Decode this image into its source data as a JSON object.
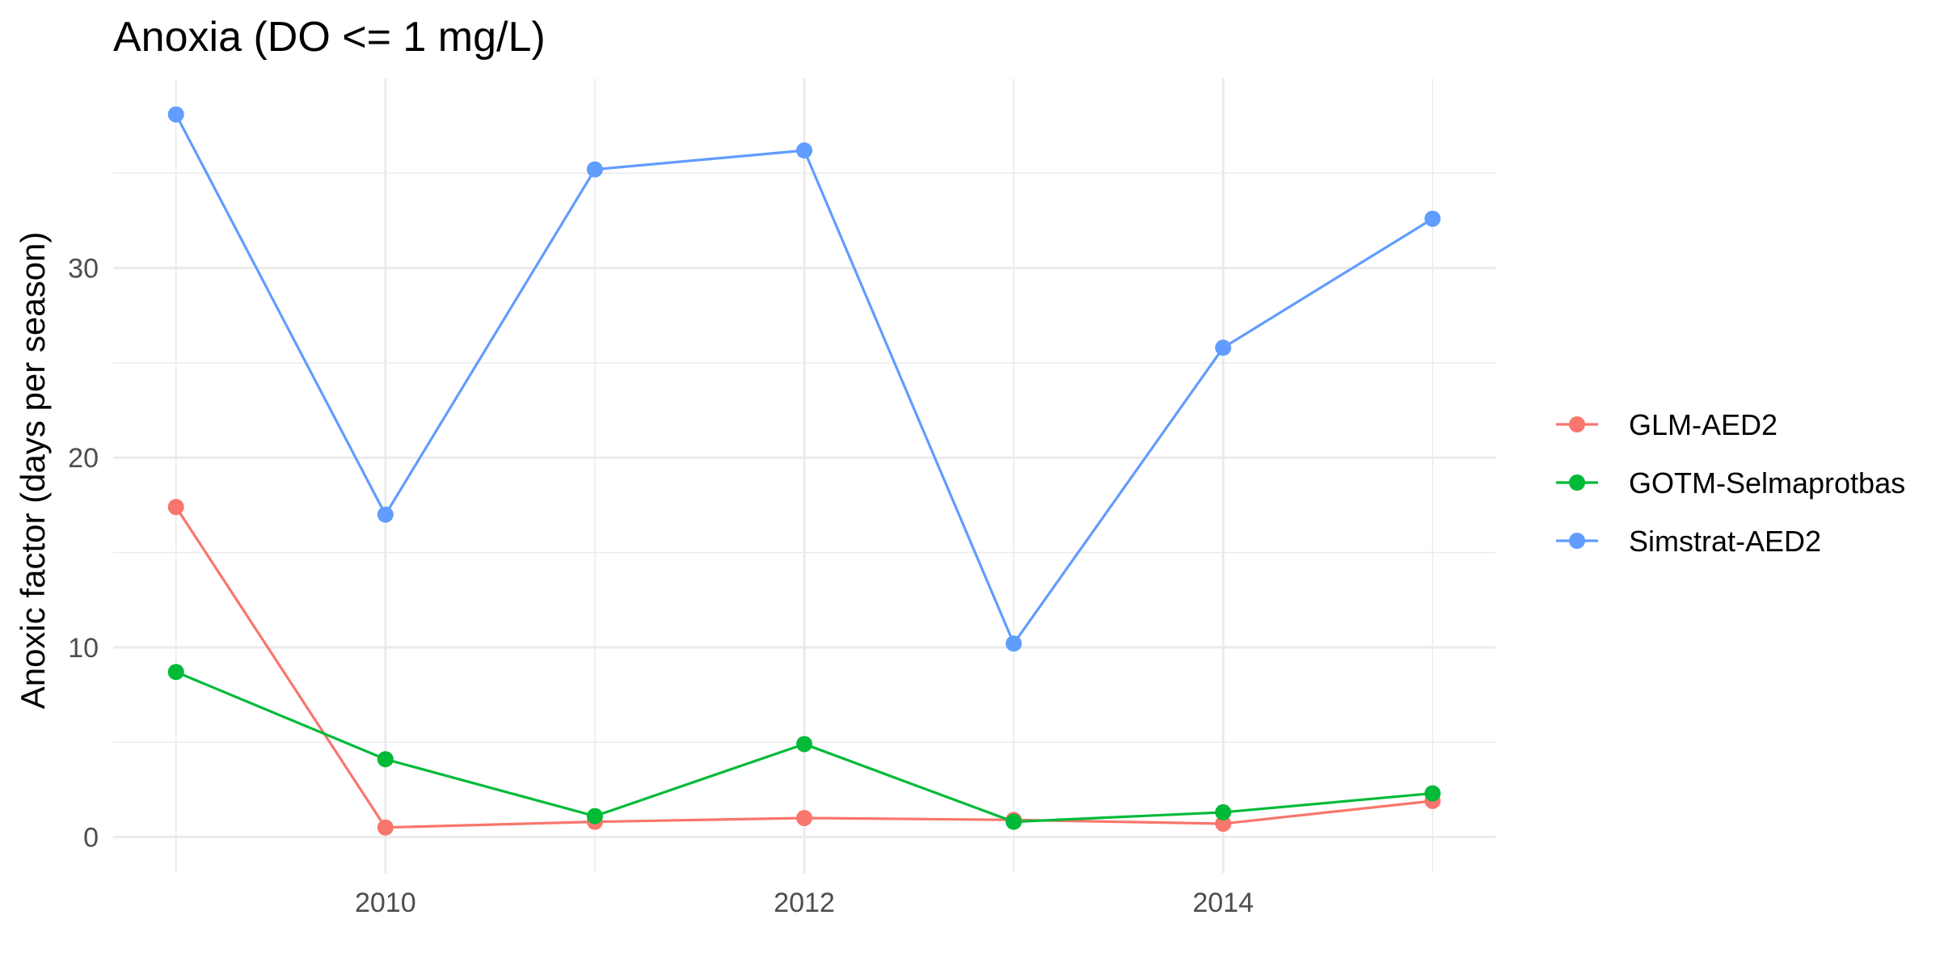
{
  "chart_data": {
    "type": "line",
    "title": "Anoxia (DO <= 1 mg/L)",
    "xlabel": "",
    "ylabel": "Anoxic factor (days per season)",
    "x": [
      2009,
      2010,
      2011,
      2012,
      2013,
      2014,
      2015
    ],
    "xlim": [
      2008.7,
      2015.3
    ],
    "ylim": [
      -1.9,
      40
    ],
    "x_ticks": [
      2010,
      2012,
      2014
    ],
    "x_tick_labels": [
      "2010",
      "2012",
      "2014"
    ],
    "y_ticks": [
      0,
      10,
      20,
      30
    ],
    "y_tick_labels": [
      "0",
      "10",
      "20",
      "30"
    ],
    "grid": true,
    "legend_position": "right",
    "series": [
      {
        "name": "GLM-AED2",
        "color": "#F8766D",
        "values": [
          17.4,
          0.5,
          0.8,
          1.0,
          0.9,
          0.7,
          1.9
        ]
      },
      {
        "name": "GOTM-Selmaprotbas",
        "color": "#00BA38",
        "values": [
          8.7,
          4.1,
          1.1,
          4.9,
          0.8,
          1.3,
          2.3
        ]
      },
      {
        "name": "Simstrat-AED2",
        "color": "#619CFF",
        "values": [
          38.1,
          17.0,
          35.2,
          36.2,
          10.2,
          25.8,
          32.6
        ]
      }
    ]
  }
}
